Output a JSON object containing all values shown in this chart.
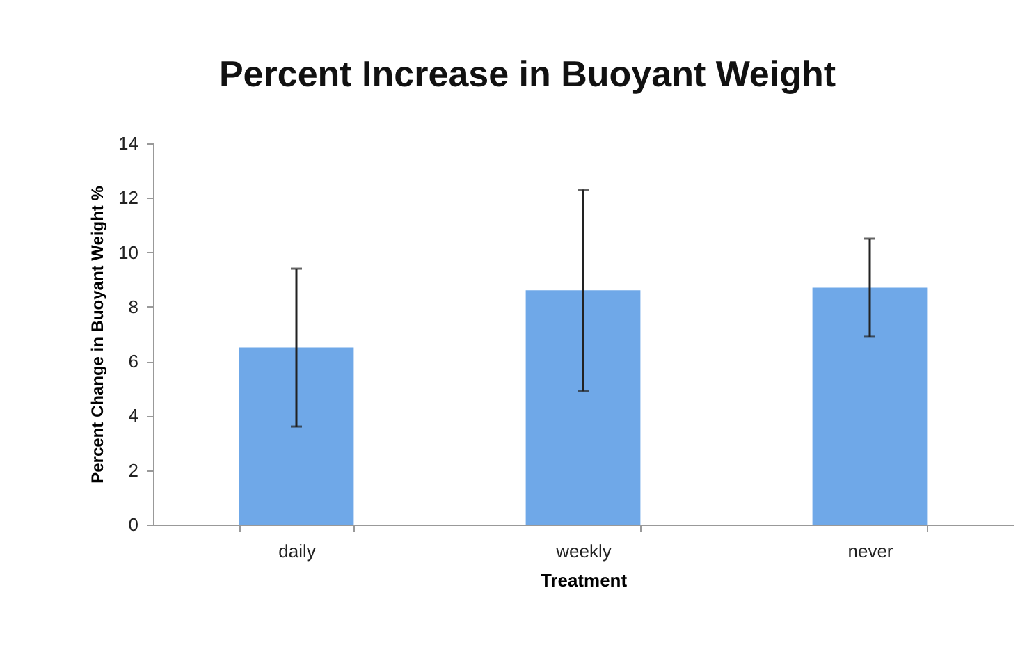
{
  "chart_data": {
    "type": "bar",
    "title": "Percent Increase in Buoyant Weight",
    "xlabel": "Treatment",
    "ylabel": "Percent Change in Buoyant Weight %",
    "categories": [
      "daily",
      "weekly",
      "never"
    ],
    "values": [
      6.5,
      8.6,
      8.7
    ],
    "errors": [
      [
        3.6,
        9.4
      ],
      [
        4.9,
        12.3
      ],
      [
        6.9,
        10.5
      ]
    ],
    "color": "#6fa8e8",
    "ylim": [
      0,
      14
    ],
    "yticks": [
      0,
      2,
      4,
      6,
      8,
      10,
      12,
      14
    ],
    "grid": false
  }
}
